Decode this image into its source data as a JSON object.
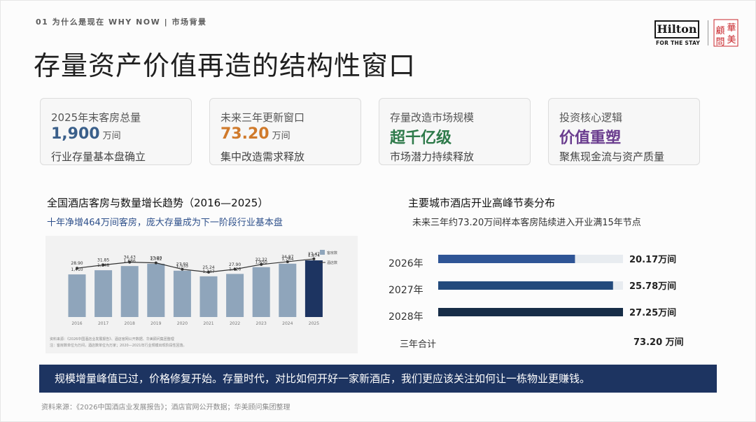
{
  "header": {
    "breadcrumb": "01 为什么是现在 WHY NOW | 市场背景",
    "title": "存量资产价值再造的结构性窗口",
    "logo": {
      "brand": "Hilton",
      "tagline": "FOR THE STAY",
      "seal_chars": [
        "華",
        "顧",
        "美",
        "問"
      ]
    }
  },
  "cards": [
    {
      "label": "2025年末客房总量",
      "value": "1,900",
      "unit": "万间",
      "sub": "行业存量基本盘确立",
      "color": "#3a5f8a"
    },
    {
      "label": "未来三年更新窗口",
      "value": "73.20",
      "unit": "万间",
      "sub": "集中改造需求释放",
      "color": "#d07a2b"
    },
    {
      "label": "存量改造市场规模",
      "value": "超千亿级",
      "unit": "",
      "sub": "市场潜力持续释放",
      "color": "#2e7a4a"
    },
    {
      "label": "投资核心逻辑",
      "value": "价值重塑",
      "unit": "",
      "sub": "聚焦现金流与资产质量",
      "color": "#6a3c8e"
    }
  ],
  "chart_left": {
    "title": "全国酒店客房与数量增长趋势（2016—2025）",
    "subtitle": "十年净增464万间客房，庞大存量成为下一阶段行业基本盘",
    "note1": "资料来源：《2026中国酒店业发展报告》、酒店官网公开数据、华美顾问集团整理",
    "note2": "注：客房数单位为万间，酒店数单位为万家；2020—2021年行业规模出现阶段性回落。"
  },
  "chart_right": {
    "title": "主要城市酒店开业高峰节奏分布",
    "subtitle": "未来三年约73.20万间样本客房陆续进入开业满15年节点",
    "total_label": "三年合计",
    "total_value": "73.20 万间"
  },
  "chart_data": [
    {
      "type": "bar",
      "categories": [
        "2016",
        "2017",
        "2018",
        "2019",
        "2020",
        "2021",
        "2022",
        "2023",
        "2024",
        "2025"
      ],
      "series": [
        {
          "name": "客房数",
          "values": [
            1410,
            1548,
            1686,
            1762,
            1533,
            1347,
            1426,
            1650,
            1764,
            1874
          ],
          "labels": [
            "1,410",
            "1,548",
            "1,686",
            "1,762",
            "1,533",
            "1,347",
            "1,426",
            "1,650",
            "1,764",
            "1,874"
          ]
        },
        {
          "name": "酒店数",
          "type": "line",
          "values": [
            28.9,
            31.85,
            34.43,
            33.8,
            27.92,
            25.24,
            27.9,
            32.32,
            34.87,
            37.47
          ]
        }
      ],
      "ylim": [
        0,
        2000
      ],
      "line_ylim": [
        0,
        45
      ],
      "legend": "right",
      "colors": {
        "bar": "#8fa5bb",
        "bar_highlight": "#1d3461",
        "line": "#333333"
      }
    },
    {
      "type": "bar",
      "orientation": "horizontal",
      "categories": [
        "2026年",
        "2027年",
        "2028年"
      ],
      "values": [
        20.17,
        25.78,
        27.25
      ],
      "labels": [
        "20.17万间",
        "25.78万间",
        "27.25万间"
      ],
      "xlim": [
        0,
        27.25
      ],
      "colors": [
        "#2f5596",
        "#234a7c",
        "#172d47"
      ],
      "track_color": "#e8ecf0"
    }
  ],
  "banner": {
    "text": "规模增量峰值已过，价格修复开始。存量时代，对比如何开好一家新酒店，我们更应该关注如何让一栋物业更赚钱。"
  },
  "footer": {
    "source": "资料来源：《2026中国酒店业发展报告》；酒店官网公开数据；华美顾问集团整理"
  }
}
